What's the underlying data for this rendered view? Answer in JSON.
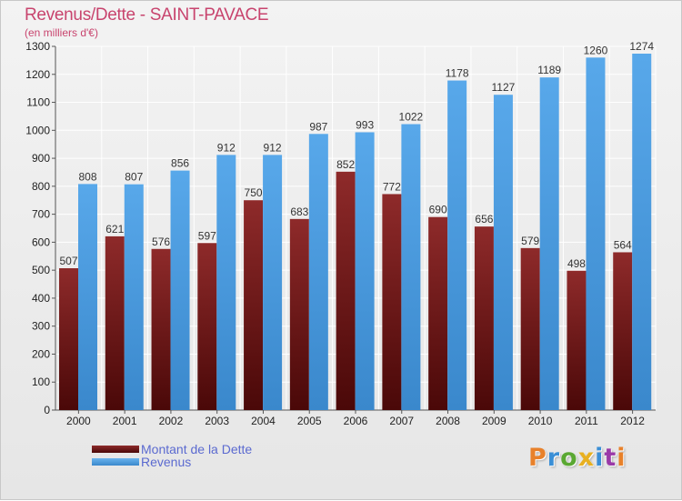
{
  "title": "Revenus/Dette - SAINT-PAVACE",
  "subtitle": "(en milliers d'€)",
  "colors": {
    "title": "#c8446e",
    "debt": "#6e1818",
    "revenue": "#4a9de0",
    "legend_text": "#5b6ad0",
    "grid": "#ffffff"
  },
  "chart_data": {
    "type": "bar",
    "categories": [
      "2000",
      "2001",
      "2002",
      "2003",
      "2004",
      "2005",
      "2006",
      "2007",
      "2008",
      "2009",
      "2010",
      "2011",
      "2012"
    ],
    "series": [
      {
        "name": "Montant de la Dette",
        "values": [
          507,
          621,
          576,
          597,
          750,
          683,
          852,
          772,
          690,
          656,
          579,
          498,
          564
        ]
      },
      {
        "name": "Revenus",
        "values": [
          808,
          807,
          856,
          912,
          912,
          987,
          993,
          1022,
          1178,
          1127,
          1189,
          1260,
          1274
        ]
      }
    ],
    "ylim": [
      0,
      1300
    ],
    "yticks": [
      0,
      100,
      200,
      300,
      400,
      500,
      600,
      700,
      800,
      900,
      1000,
      1100,
      1200,
      1300
    ],
    "grid": true,
    "legend_position": "bottom-left"
  },
  "legend": {
    "debt_label": "Montant de la Dette",
    "revenue_label": "Revenus"
  },
  "logo": {
    "text": "Proxiti",
    "colors": [
      "#e8812a",
      "#3a8fd6",
      "#5aa832",
      "#e8b020",
      "#3a8fd6",
      "#9a3aa8",
      "#e8812a"
    ]
  }
}
